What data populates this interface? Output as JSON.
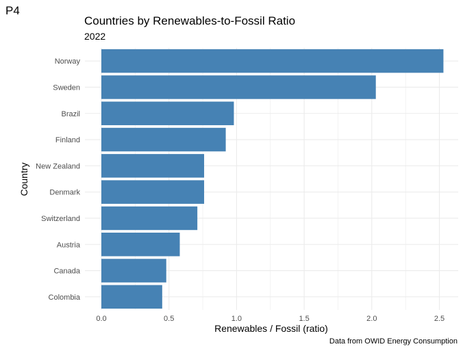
{
  "panel_tag": "P4",
  "chart_data": {
    "type": "bar",
    "orientation": "horizontal",
    "title": "Countries by Renewables-to-Fossil Ratio",
    "subtitle": "2022",
    "xlabel": "Renewables / Fossil (ratio)",
    "ylabel": "Country",
    "caption": "Data from OWID Energy Consumption",
    "categories": [
      "Norway",
      "Sweden",
      "Brazil",
      "Finland",
      "New Zealand",
      "Denmark",
      "Switzerland",
      "Austria",
      "Canada",
      "Colombia"
    ],
    "values": [
      2.53,
      2.03,
      0.98,
      0.92,
      0.76,
      0.76,
      0.71,
      0.58,
      0.48,
      0.45
    ],
    "xlim": [
      0,
      2.65
    ],
    "xticks": [
      0.0,
      0.5,
      1.0,
      1.5,
      2.0,
      2.5
    ],
    "xtick_labels": [
      "0.0",
      "0.5",
      "1.0",
      "1.5",
      "2.0",
      "2.5"
    ],
    "bar_color": "#4682B4",
    "grid_color": "#EBEBEB",
    "grid": true,
    "legend": "none"
  }
}
